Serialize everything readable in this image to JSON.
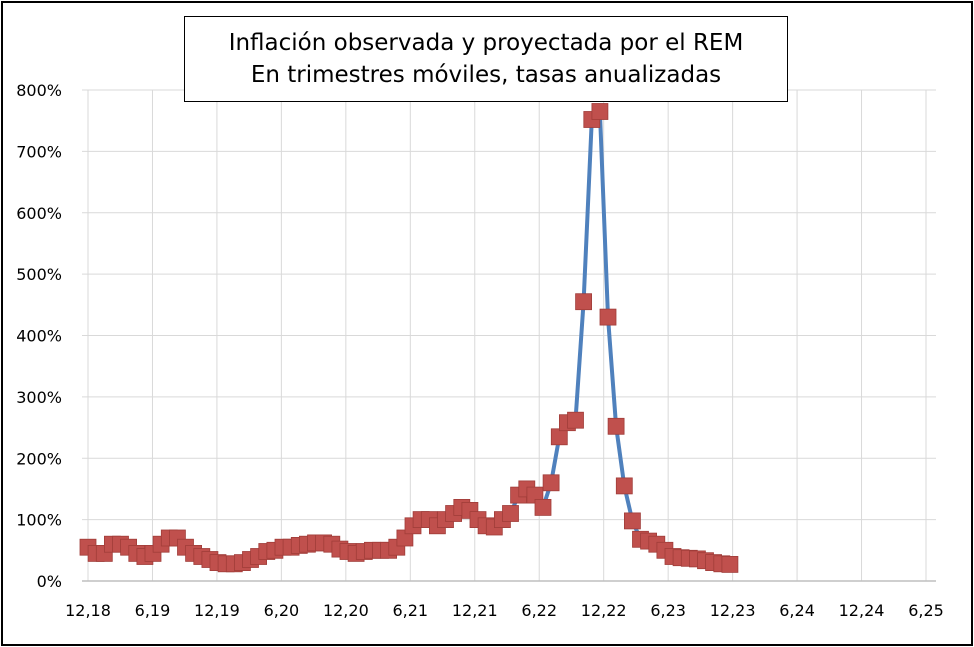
{
  "chart_data": {
    "type": "line",
    "title": "Inflación observada y proyectada por el REM",
    "subtitle": "En trimestres móviles, tasas anualizadas",
    "xlabel": "",
    "ylabel": "",
    "ylim": [
      0,
      800
    ],
    "y_ticks": [
      "0%",
      "100%",
      "200%",
      "300%",
      "400%",
      "500%",
      "600%",
      "700%",
      "800%"
    ],
    "x_ticks": [
      "12,18",
      "6,19",
      "12,19",
      "6,20",
      "12,20",
      "6,21",
      "12,21",
      "6,22",
      "12,22",
      "6,23",
      "12,23",
      "6,24",
      "12,24",
      "6,25"
    ],
    "grid": true,
    "legend": "none",
    "line_color": "#4f81bd",
    "marker_color": "#c0504d",
    "series": [
      {
        "values": [
          55,
          45,
          45,
          60,
          60,
          55,
          45,
          40,
          45,
          60,
          70,
          70,
          55,
          45,
          40,
          35,
          30,
          28,
          28,
          30,
          35,
          40,
          48,
          50,
          55,
          55,
          58,
          60,
          62,
          62,
          60,
          52,
          48,
          45,
          48,
          50,
          50,
          50,
          55,
          70,
          90,
          100,
          100,
          90,
          100,
          110,
          120,
          115,
          100,
          90,
          88,
          100,
          110,
          140,
          150,
          140,
          120,
          160,
          235,
          258,
          262,
          455,
          752,
          765,
          430,
          252,
          155,
          98,
          68,
          65,
          60,
          50,
          40,
          38,
          37,
          36,
          33,
          30,
          28,
          27
        ]
      }
    ]
  }
}
